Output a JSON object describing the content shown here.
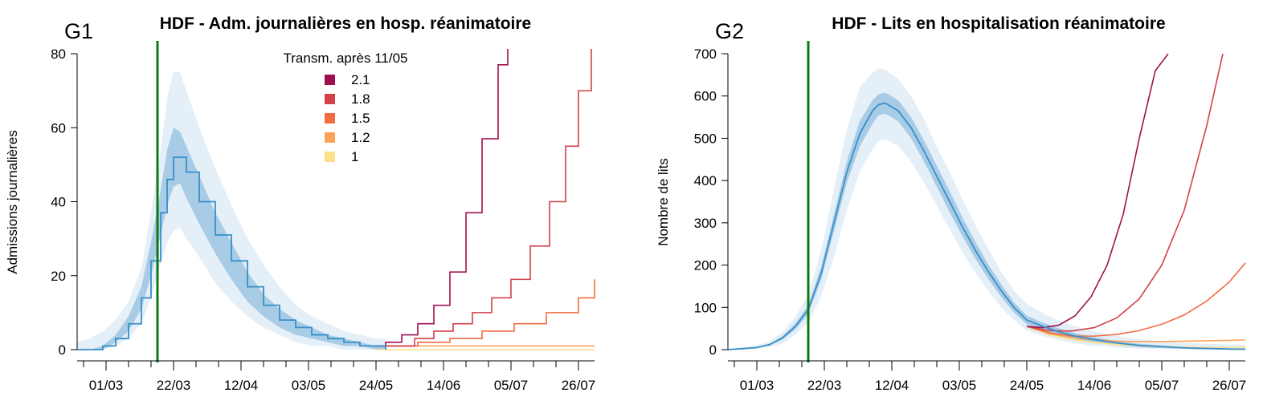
{
  "chart_data": [
    {
      "type": "line",
      "panel_label": "G1",
      "title": "HDF - Adm. journalières en hosp. réanimatoire",
      "xlabel": "",
      "ylabel": "Admissions journalières",
      "ylim": [
        0,
        80
      ],
      "yticks": [
        "0",
        "20",
        "40",
        "60",
        "80"
      ],
      "xticks": [
        "01/03",
        "22/03",
        "12/04",
        "03/05",
        "24/05",
        "14/06",
        "05/07",
        "26/07"
      ],
      "vline_date": "17/03",
      "legend_title": "Transm. après 11/05",
      "legend": [
        {
          "label": "2.1",
          "color": "#9e1150"
        },
        {
          "label": "1.8",
          "color": "#d2404a"
        },
        {
          "label": "1.5",
          "color": "#f26c42"
        },
        {
          "label": "1.2",
          "color": "#fba25a"
        },
        {
          "label": "1",
          "color": "#fde08a"
        }
      ],
      "fit": {
        "name": "fit",
        "color": "#3a8fc8",
        "x": [
          "21/02",
          "25/02",
          "29/02",
          "04/03",
          "08/03",
          "12/03",
          "15/03",
          "18/03",
          "20/03",
          "22/03",
          "24/03",
          "26/03",
          "30/03",
          "04/04",
          "09/04",
          "14/04",
          "19/04",
          "24/04",
          "29/04",
          "04/05",
          "09/05",
          "14/05",
          "19/05",
          "24/05",
          "27/05"
        ],
        "median": [
          0,
          0,
          1,
          3,
          7,
          14,
          24,
          37,
          46,
          52,
          52,
          48,
          40,
          31,
          24,
          17,
          12,
          8,
          6,
          4,
          3,
          2,
          1,
          1,
          0
        ],
        "ci50_lo": [
          0,
          0,
          0,
          2,
          5,
          11,
          20,
          31,
          39,
          44,
          45,
          41,
          34,
          26,
          19,
          13,
          9,
          6,
          4,
          3,
          2,
          1,
          1,
          0,
          0
        ],
        "ci50_hi": [
          0,
          0,
          1,
          4,
          9,
          17,
          29,
          43,
          54,
          60,
          59,
          55,
          47,
          37,
          29,
          21,
          15,
          11,
          8,
          6,
          4,
          3,
          2,
          1,
          1
        ],
        "ci95_lo": [
          0,
          0,
          0,
          1,
          3,
          7,
          14,
          23,
          29,
          32,
          33,
          30,
          25,
          18,
          13,
          9,
          6,
          4,
          2,
          1,
          1,
          0,
          0,
          0,
          0
        ],
        "ci95_hi": [
          2,
          3,
          5,
          8,
          13,
          22,
          37,
          54,
          68,
          75,
          75,
          70,
          60,
          49,
          39,
          30,
          23,
          17,
          12,
          9,
          7,
          5,
          4,
          3,
          3
        ]
      },
      "scenarios": [
        {
          "name": "2.1",
          "color": "#9e1150",
          "x": [
            "23/05",
            "27/05",
            "01/06",
            "06/06",
            "11/06",
            "16/06",
            "21/06",
            "26/06",
            "01/07",
            "04/07"
          ],
          "y": [
            1,
            2,
            4,
            7,
            12,
            21,
            37,
            57,
            77,
            82
          ]
        },
        {
          "name": "1.8",
          "color": "#d2404a",
          "x": [
            "25/05",
            "30/05",
            "05/06",
            "11/06",
            "17/06",
            "23/06",
            "29/06",
            "05/07",
            "11/07",
            "17/07",
            "22/07",
            "26/07",
            "30/07"
          ],
          "y": [
            1,
            1,
            3,
            5,
            7,
            10,
            14,
            19,
            28,
            40,
            55,
            70,
            82
          ]
        },
        {
          "name": "1.5",
          "color": "#f26c42",
          "x": [
            "27/05",
            "06/06",
            "16/06",
            "26/06",
            "06/07",
            "16/07",
            "26/07",
            "31/07"
          ],
          "y": [
            1,
            2,
            3,
            5,
            7,
            10,
            14,
            19
          ]
        },
        {
          "name": "1.2",
          "color": "#fba25a",
          "x": [
            "24/05",
            "31/07"
          ],
          "y": [
            1,
            1
          ]
        },
        {
          "name": "1",
          "color": "#fde08a",
          "x": [
            "24/05",
            "31/07"
          ],
          "y": [
            0,
            0
          ]
        }
      ]
    },
    {
      "type": "line",
      "panel_label": "G2",
      "title": "HDF - Lits en hospitalisation réanimatoire",
      "xlabel": "",
      "ylabel": "Nombre de lits",
      "ylim": [
        0,
        700
      ],
      "yticks": [
        "0",
        "100",
        "200",
        "300",
        "400",
        "500",
        "600",
        "700"
      ],
      "xticks": [
        "01/03",
        "22/03",
        "12/04",
        "03/05",
        "24/05",
        "14/06",
        "05/07",
        "26/07"
      ],
      "vline_date": "17/03",
      "fit": {
        "name": "fit",
        "color": "#3a8fc8",
        "x": [
          "21/02",
          "25/02",
          "01/03",
          "05/03",
          "09/03",
          "13/03",
          "17/03",
          "21/03",
          "25/03",
          "29/03",
          "02/04",
          "06/04",
          "08/04",
          "10/04",
          "14/04",
          "18/04",
          "22/04",
          "26/04",
          "30/04",
          "04/05",
          "08/05",
          "12/05",
          "16/05",
          "20/05",
          "24/05",
          "29/05",
          "03/06",
          "08/06",
          "13/06",
          "18/06",
          "23/06",
          "28/06",
          "03/07",
          "08/07",
          "13/07",
          "18/07",
          "23/07",
          "28/07",
          "31/07"
        ],
        "median": [
          0,
          2,
          5,
          12,
          28,
          55,
          95,
          180,
          300,
          420,
          510,
          565,
          580,
          583,
          565,
          525,
          470,
          410,
          350,
          290,
          235,
          185,
          140,
          100,
          70,
          55,
          42,
          32,
          25,
          19,
          14,
          10,
          8,
          6,
          4,
          3,
          2,
          1,
          1
        ],
        "ci50_lo": [
          0,
          1,
          4,
          10,
          24,
          48,
          85,
          165,
          280,
          395,
          480,
          535,
          555,
          558,
          540,
          500,
          445,
          385,
          325,
          268,
          215,
          168,
          125,
          88,
          60,
          46,
          34,
          25,
          18,
          13,
          9,
          6,
          4,
          3,
          2,
          1,
          1,
          0,
          0
        ],
        "ci50_hi": [
          1,
          3,
          6,
          14,
          32,
          62,
          105,
          195,
          320,
          445,
          540,
          590,
          605,
          608,
          590,
          550,
          495,
          435,
          375,
          312,
          255,
          202,
          155,
          112,
          80,
          64,
          50,
          39,
          31,
          24,
          18,
          14,
          11,
          8,
          6,
          5,
          4,
          3,
          3
        ],
        "ci95_lo": [
          0,
          0,
          2,
          6,
          15,
          35,
          65,
          125,
          220,
          330,
          420,
          475,
          495,
          498,
          482,
          445,
          395,
          340,
          285,
          230,
          182,
          140,
          100,
          70,
          45,
          32,
          22,
          15,
          10,
          7,
          4,
          3,
          2,
          1,
          1,
          0,
          0,
          0,
          0
        ],
        "ci95_hi": [
          2,
          5,
          10,
          20,
          42,
          78,
          130,
          235,
          380,
          520,
          620,
          655,
          665,
          662,
          640,
          600,
          545,
          480,
          420,
          355,
          295,
          238,
          185,
          140,
          108,
          86,
          68,
          55,
          45,
          37,
          30,
          25,
          21,
          18,
          16,
          14,
          13,
          12,
          12
        ]
      },
      "scenarios": [
        {
          "name": "2.1",
          "color": "#9e1150",
          "x": [
            "24/05",
            "29/05",
            "03/06",
            "08/06",
            "13/06",
            "18/06",
            "23/06",
            "28/06",
            "03/07",
            "07/07"
          ],
          "y": [
            55,
            52,
            58,
            80,
            125,
            200,
            320,
            500,
            660,
            700
          ]
        },
        {
          "name": "1.8",
          "color": "#d2404a",
          "x": [
            "24/05",
            "31/05",
            "07/06",
            "14/06",
            "21/06",
            "28/06",
            "05/07",
            "12/07",
            "19/07",
            "24/07"
          ],
          "y": [
            55,
            45,
            44,
            52,
            75,
            120,
            200,
            330,
            530,
            700
          ]
        },
        {
          "name": "1.5",
          "color": "#f26c42",
          "x": [
            "24/05",
            "31/05",
            "07/06",
            "14/06",
            "21/06",
            "28/06",
            "05/07",
            "12/07",
            "19/07",
            "26/07",
            "31/07"
          ],
          "y": [
            55,
            40,
            32,
            32,
            36,
            45,
            60,
            82,
            115,
            160,
            205
          ]
        },
        {
          "name": "1.2",
          "color": "#fba25a",
          "x": [
            "24/05",
            "31/05",
            "07/06",
            "14/06",
            "21/06",
            "28/06",
            "05/07",
            "12/07",
            "19/07",
            "26/07",
            "31/07"
          ],
          "y": [
            55,
            38,
            28,
            23,
            20,
            19,
            19,
            20,
            21,
            22,
            23
          ]
        },
        {
          "name": "1",
          "color": "#fde08a",
          "x": [
            "24/05",
            "31/05",
            "07/06",
            "14/06",
            "21/06",
            "28/06",
            "05/07",
            "12/07",
            "19/07",
            "26/07",
            "31/07"
          ],
          "y": [
            55,
            35,
            24,
            17,
            12,
            9,
            7,
            6,
            5,
            5,
            5
          ]
        }
      ]
    }
  ]
}
